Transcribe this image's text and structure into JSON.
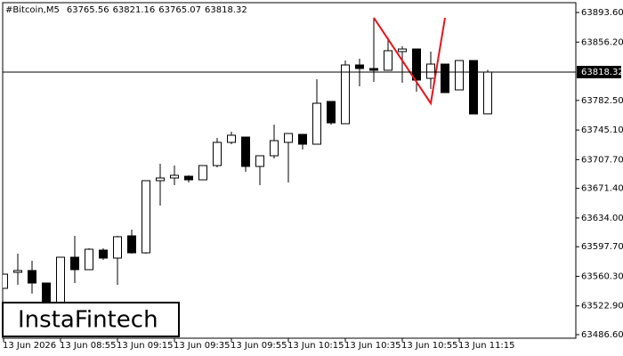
{
  "chart_data": {
    "type": "candlestick",
    "symbol": "#Bitcoin,M5",
    "categories": [
      "13 Jun 2026",
      null,
      null,
      null,
      "13 Jun 08:55",
      null,
      null,
      null,
      "13 Jun 09:15",
      null,
      null,
      null,
      "13 Jun 09:35",
      null,
      null,
      null,
      "13 Jun 09:55",
      null,
      null,
      null,
      "13 Jun 10:15",
      null,
      null,
      null,
      "13 Jun 10:35",
      null,
      null,
      null,
      "13 Jun 10:55",
      null,
      null,
      null,
      "13 Jun 11:15",
      null,
      null
    ],
    "open": [
      63545.1,
      63565.3,
      63567.6,
      63551.8,
      63521.5,
      63584.4,
      63568.7,
      63593.4,
      63583.3,
      63611.4,
      63590.0,
      63681.1,
      63684.5,
      63686.7,
      63682.2,
      63700.2,
      63729.5,
      63736.2,
      63699.1,
      63712.6,
      63729.5,
      63739.6,
      63727.2,
      63781.2,
      63753.1,
      63827.3,
      63822.8,
      63820.6,
      63844.2,
      63847.5,
      63810.4,
      63828.4,
      63795.8,
      63832.9,
      63765.56
    ],
    "high": [
      63563.0,
      63588.9,
      63579.9,
      63551.8,
      63584.4,
      63611.4,
      63595.7,
      63595.7,
      63611.4,
      63619.3,
      63681.1,
      63702.5,
      63700.2,
      63687.9,
      63700.2,
      63735.1,
      63743.0,
      63736.2,
      63712.6,
      63752.0,
      63740.7,
      63739.6,
      63809.3,
      63781.2,
      63832.9,
      63835.2,
      63886.9,
      63862.1,
      63850.9,
      63847.5,
      63844.2,
      63828.4,
      63832.9,
      63832.9,
      63821.16
    ],
    "low": [
      63545.1,
      63549.6,
      63538.4,
      63521.5,
      63521.5,
      63551.8,
      63568.7,
      63581.0,
      63549.6,
      63588.9,
      63588.9,
      63649.6,
      63675.5,
      63678.9,
      63682.2,
      63698.0,
      63727.2,
      63692.4,
      63675.5,
      63709.2,
      63678.9,
      63720.5,
      63727.2,
      63752.0,
      63753.1,
      63800.3,
      63805.9,
      63820.6,
      63804.8,
      63793.6,
      63796.9,
      63792.4,
      63795.8,
      63765.4,
      63765.07
    ],
    "close": [
      63563.0,
      63567.6,
      63551.8,
      63521.5,
      63584.4,
      63568.7,
      63594.5,
      63583.3,
      63610.3,
      63590.0,
      63681.1,
      63684.5,
      63687.9,
      63682.2,
      63700.2,
      63729.5,
      63738.5,
      63699.1,
      63712.6,
      63731.7,
      63740.7,
      63727.2,
      63778.9,
      63754.2,
      63827.3,
      63822.8,
      63820.6,
      63845.3,
      63847.5,
      63808.2,
      63828.4,
      63792.4,
      63832.9,
      63765.4,
      63818.32
    ],
    "ylim": [
      63482.1,
      63906.0
    ],
    "yticks": [
      {
        "value": 63893.6,
        "label": "63893.60"
      },
      {
        "value": 63856.2,
        "label": "63856.20"
      },
      {
        "value": 63782.5,
        "label": "63782.50"
      },
      {
        "value": 63745.1,
        "label": "63745.10"
      },
      {
        "value": 63707.7,
        "label": "63707.70"
      },
      {
        "value": 63671.4,
        "label": "63671.40"
      },
      {
        "value": 63634.0,
        "label": "63634.00"
      },
      {
        "value": 63597.7,
        "label": "63597.70"
      },
      {
        "value": 63560.3,
        "label": "63560.30"
      },
      {
        "value": 63522.9,
        "label": "63522.90"
      },
      {
        "value": 63486.6,
        "label": "63486.60"
      }
    ],
    "pattern": {
      "color": "#e8141c",
      "points": [
        {
          "index": 26,
          "value": 63886.9
        },
        {
          "index": 30,
          "value": 63778.9
        },
        {
          "index": 31,
          "value": 63886.9
        }
      ]
    },
    "watermark": "InstaFintech"
  }
}
